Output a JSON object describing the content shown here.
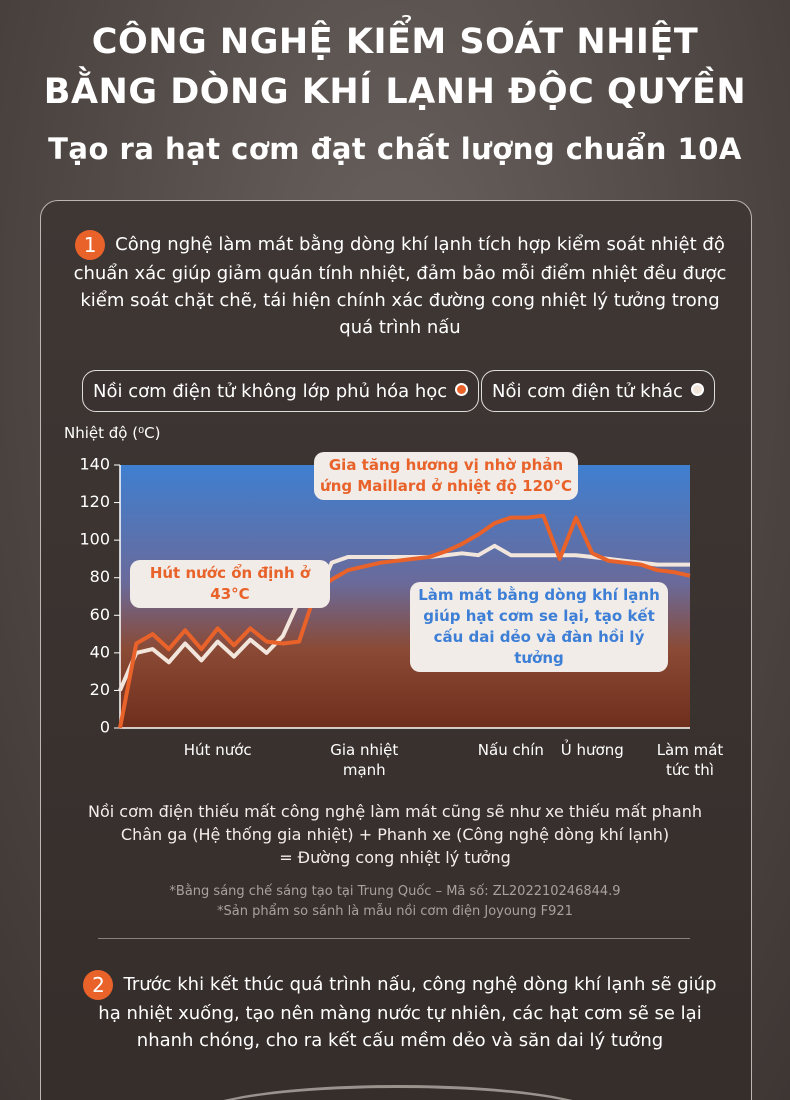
{
  "header": {
    "title_lines": [
      "CÔNG NGHỆ KIỂM SOÁT NHIỆT",
      "BẰNG DÒNG KHÍ LẠNH ĐỘC QUYỀN"
    ],
    "subtitle": "Tạo ra hạt cơm đạt chất lượng chuẩn 10A"
  },
  "section1": {
    "number": "1",
    "text": "Công nghệ làm mát bằng dòng khí lạnh tích hợp kiểm soát nhiệt độ chuẩn xác giúp giảm quán tính nhiệt, đảm bảo mỗi điểm nhiệt đều được kiểm soát chặt chẽ, tái hiện chính xác đường cong nhiệt lý tưởng trong quá trình nấu"
  },
  "chart_data": {
    "type": "line",
    "y_label": "Nhiệt độ (⁰C)",
    "ylim": [
      0,
      140
    ],
    "yticks": [
      0,
      20,
      40,
      60,
      80,
      100,
      120,
      140
    ],
    "categories": [
      null,
      null,
      null,
      null,
      null,
      null,
      "Hút nước",
      null,
      null,
      null,
      null,
      null,
      null,
      null,
      null,
      "Gia nhiệt mạnh",
      null,
      null,
      null,
      null,
      null,
      null,
      null,
      null,
      "Nấu chín",
      null,
      null,
      null,
      null,
      "Ủ hương",
      null,
      null,
      null,
      null,
      null,
      "Làm mát tức thì"
    ],
    "series": [
      {
        "name": "Nồi cơm điện tử không lớp phủ hóa học",
        "color": "#e8622a",
        "values": [
          0,
          45,
          50,
          42,
          52,
          42,
          53,
          44,
          53,
          46,
          45,
          46,
          72,
          79,
          84,
          86,
          88,
          89,
          90,
          91,
          94,
          98,
          103,
          109,
          112,
          112,
          113,
          90,
          112,
          93,
          89,
          88,
          87,
          84,
          83,
          81
        ]
      },
      {
        "name": "Nồi cơm điện tử khác",
        "color": "#f2e6dc",
        "values": [
          20,
          40,
          42,
          35,
          45,
          36,
          46,
          38,
          47,
          40,
          49,
          68,
          68,
          88,
          91,
          91,
          91,
          91,
          91,
          91,
          92,
          93,
          92,
          97,
          92,
          92,
          92,
          92,
          92,
          91,
          90,
          89,
          88,
          87,
          87,
          87
        ]
      }
    ],
    "annotations": [
      "Gia tăng hương vị nhờ phản ứng Maillard ở nhiệt độ 120°C",
      "Hút nước ổn định ở 43°C",
      "Làm mát bằng dòng khí lạnh giúp hạt cơm se lại, tạo kết cấu dai dẻo và đàn hồi lý tưởng"
    ]
  },
  "notes": [
    "Nồi cơm điện thiếu mất công nghệ làm mát cũng sẽ như xe thiếu mất phanh",
    "Chân ga (Hệ thống gia nhiệt) + Phanh xe (Công nghệ dòng khí lạnh)",
    "= Đường cong nhiệt lý tưởng"
  ],
  "footnotes": [
    "*Bằng sáng chế sáng tạo tại Trung Quốc – Mã số: ZL202210246844.9",
    "*Sản phẩm so sánh là mẫu nồi cơm điện Joyoung F921"
  ],
  "section2": {
    "number": "2",
    "text": "Trước khi kết thúc quá trình nấu, công nghệ dòng khí lạnh sẽ giúp hạ nhiệt xuống, tạo nên màng nước tự nhiên, các hạt cơm sẽ se lại nhanh chóng, cho ra kết cấu mềm dẻo và săn dai lý tưởng"
  }
}
